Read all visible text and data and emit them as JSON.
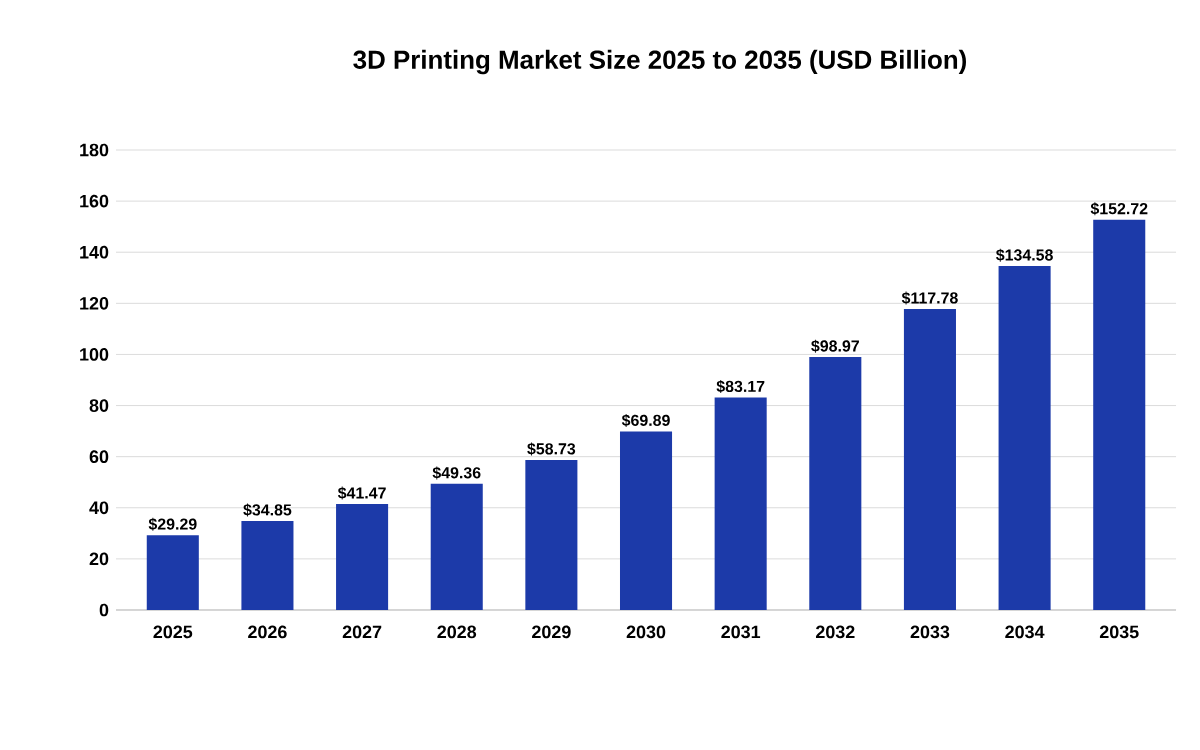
{
  "chart_data": {
    "type": "bar",
    "title": "3D Printing Market Size 2025 to 2035 (USD Billion)",
    "categories": [
      "2025",
      "2026",
      "2027",
      "2028",
      "2029",
      "2030",
      "2031",
      "2032",
      "2033",
      "2034",
      "2035"
    ],
    "values": [
      29.29,
      34.85,
      41.47,
      49.36,
      58.73,
      69.89,
      83.17,
      98.97,
      117.78,
      134.58,
      152.72
    ],
    "value_labels": [
      "$29.29",
      "$34.85",
      "$41.47",
      "$49.36",
      "$58.73",
      "$69.89",
      "$83.17",
      "$98.97",
      "$117.78",
      "$134.58",
      "$152.72"
    ],
    "color": "#1c3aa9",
    "ylim": [
      0,
      180
    ],
    "yticks": [
      0,
      20,
      40,
      60,
      80,
      100,
      120,
      140,
      160,
      180
    ],
    "grid": "y"
  }
}
